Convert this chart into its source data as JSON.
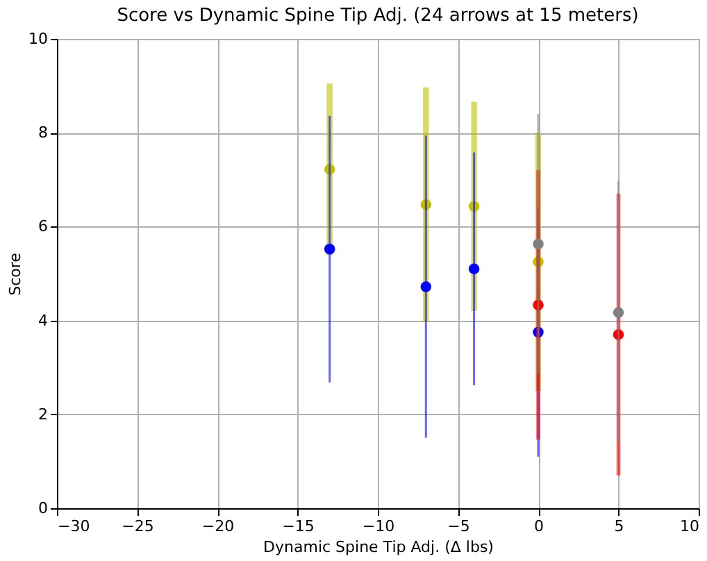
{
  "chart_data": {
    "type": "scatter",
    "title": "Score vs Dynamic Spine Tip Adj. (24 arrows at 15 meters)",
    "xlabel": "Dynamic Spine Tip Adj. (Δ lbs)",
    "ylabel": "Score",
    "series": [
      {
        "color": "#bfbf00",
        "x": [
          -13,
          -7,
          -4,
          0
        ],
        "values": [
          7.22,
          6.47,
          6.43,
          5.25
        ],
        "errors": [
          1.83,
          2.5,
          2.23,
          2.75
        ]
      },
      {
        "color": "#0000ff",
        "x": [
          -13,
          -7,
          -4,
          0
        ],
        "values": [
          5.52,
          4.72,
          5.1,
          3.75
        ],
        "errors": [
          2.84,
          3.22,
          2.48,
          2.65
        ]
      },
      {
        "color": "#ff0000",
        "x": [
          0,
          5
        ],
        "values": [
          4.33,
          3.7
        ],
        "errors": [
          2.87,
          3.0
        ]
      },
      {
        "color": "#808080",
        "x": [
          0,
          5
        ],
        "values": [
          5.63,
          4.17
        ],
        "errors": [
          2.77,
          2.8
        ]
      }
    ],
    "xlim": [
      -30,
      10
    ],
    "xticks": [
      -30,
      -25,
      -20,
      -15,
      -10,
      -5,
      0,
      5,
      10
    ],
    "ylim": [
      0,
      10
    ],
    "yticks": [
      0,
      2,
      4,
      6,
      8,
      10
    ],
    "grid": true,
    "marker": "circle"
  }
}
